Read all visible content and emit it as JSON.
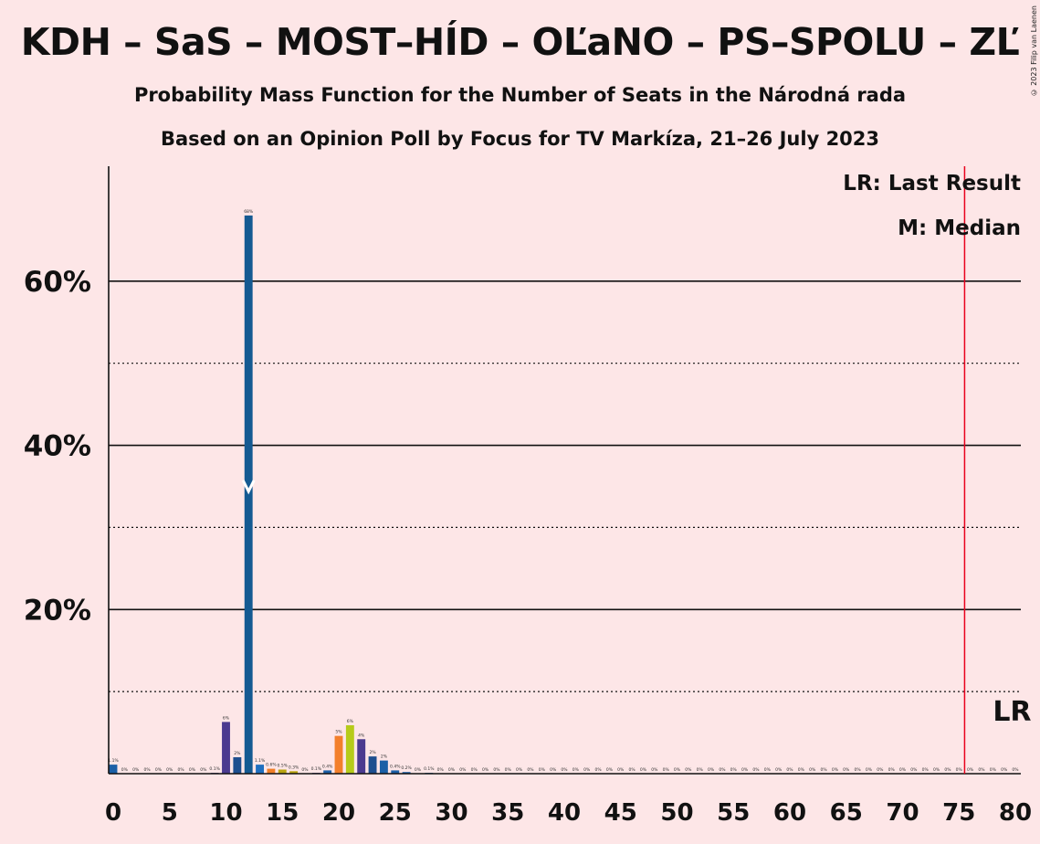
{
  "title": "KDH – SaS – MOST–HÍD – OĽaNO – PS–SPOLU – ZĽ",
  "subtitle1": "Probability Mass Function for the Number of Seats in the Národná rada",
  "subtitle2": "Based on an Opinion Poll by Focus for TV Markíza, 21–26 July 2023",
  "copyright": "© 2023 Filip van Laenen",
  "chart_data": {
    "type": "bar",
    "xlim": [
      0,
      80
    ],
    "ylim": [
      0,
      74
    ],
    "x_ticks": [
      0,
      5,
      10,
      15,
      20,
      25,
      30,
      35,
      40,
      45,
      50,
      55,
      60,
      65,
      70,
      75,
      80
    ],
    "y_ticks_labeled": [
      {
        "value": 20,
        "label": "20%"
      },
      {
        "value": 40,
        "label": "40%"
      },
      {
        "value": 60,
        "label": "60%"
      }
    ],
    "y_grid_solid": [
      20,
      40,
      60
    ],
    "y_grid_dotted": [
      10,
      30,
      50
    ],
    "last_result": {
      "seats": 76,
      "label": "LR",
      "legend": "LR: Last Result",
      "color": "#e8001c"
    },
    "median": {
      "seats": 12,
      "legend": "M: Median"
    },
    "bars": [
      {
        "seats": 0,
        "value": 1.1,
        "label": "1.1%",
        "color": "#1b5fa6"
      },
      {
        "seats": 1,
        "value": 0,
        "label": "0%",
        "color": "#1b5fa6"
      },
      {
        "seats": 2,
        "value": 0,
        "label": "0%",
        "color": "#1b5fa6"
      },
      {
        "seats": 3,
        "value": 0,
        "label": "0%",
        "color": "#1b5fa6"
      },
      {
        "seats": 4,
        "value": 0,
        "label": "0%",
        "color": "#1b5fa6"
      },
      {
        "seats": 5,
        "value": 0,
        "label": "0%",
        "color": "#1b5fa6"
      },
      {
        "seats": 6,
        "value": 0,
        "label": "0%",
        "color": "#1b5fa6"
      },
      {
        "seats": 7,
        "value": 0,
        "label": "0%",
        "color": "#1b5fa6"
      },
      {
        "seats": 8,
        "value": 0,
        "label": "0%",
        "color": "#1b5fa6"
      },
      {
        "seats": 9,
        "value": 0.1,
        "label": "0.1%",
        "color": "#4b3a8f"
      },
      {
        "seats": 10,
        "value": 6.3,
        "label": "6%",
        "color": "#4b3a8f"
      },
      {
        "seats": 11,
        "value": 2,
        "label": "2%",
        "color": "#1d4f8f"
      },
      {
        "seats": 12,
        "value": 68,
        "label": "68%",
        "color": "#145a92"
      },
      {
        "seats": 13,
        "value": 1.1,
        "label": "1.1%",
        "color": "#1e6fc0"
      },
      {
        "seats": 14,
        "value": 0.6,
        "label": "0.6%",
        "color": "#f07e28"
      },
      {
        "seats": 15,
        "value": 0.5,
        "label": "0.5%",
        "color": "#b9a410"
      },
      {
        "seats": 16,
        "value": 0.3,
        "label": "0.3%",
        "color": "#b9a410"
      },
      {
        "seats": 17,
        "value": 0,
        "label": "0%",
        "color": "#b9a410"
      },
      {
        "seats": 18,
        "value": 0.1,
        "label": "0.1%",
        "color": "#4b3a8f"
      },
      {
        "seats": 19,
        "value": 0.4,
        "label": "0.4%",
        "color": "#1b5fa6"
      },
      {
        "seats": 20,
        "value": 4.6,
        "label": "5%",
        "color": "#f37f2b"
      },
      {
        "seats": 21,
        "value": 5.9,
        "label": "6%",
        "color": "#b6cb1a"
      },
      {
        "seats": 22,
        "value": 4.2,
        "label": "4%",
        "color": "#4b3a8f"
      },
      {
        "seats": 23,
        "value": 2.1,
        "label": "2%",
        "color": "#1d4f8f"
      },
      {
        "seats": 24,
        "value": 1.6,
        "label": "2%",
        "color": "#1b5fa6"
      },
      {
        "seats": 25,
        "value": 0.4,
        "label": "0.4%",
        "color": "#1b5fa6"
      },
      {
        "seats": 26,
        "value": 0.2,
        "label": "0.2%",
        "color": "#1b5fa6"
      },
      {
        "seats": 27,
        "value": 0,
        "label": "0%",
        "color": "#1b5fa6"
      },
      {
        "seats": 28,
        "value": 0.1,
        "label": "0.1%",
        "color": "#1b5fa6"
      },
      {
        "seats": 29,
        "value": 0,
        "label": "0%",
        "color": "#1b5fa6"
      },
      {
        "seats": 30,
        "value": 0,
        "label": "0%",
        "color": "#1b5fa6"
      },
      {
        "seats": 31,
        "value": 0,
        "label": "0%",
        "color": "#1b5fa6"
      },
      {
        "seats": 32,
        "value": 0,
        "label": "0%",
        "color": "#1b5fa6"
      },
      {
        "seats": 33,
        "value": 0,
        "label": "0%",
        "color": "#1b5fa6"
      },
      {
        "seats": 34,
        "value": 0,
        "label": "0%",
        "color": "#1b5fa6"
      },
      {
        "seats": 35,
        "value": 0,
        "label": "0%",
        "color": "#1b5fa6"
      },
      {
        "seats": 36,
        "value": 0,
        "label": "0%",
        "color": "#1b5fa6"
      },
      {
        "seats": 37,
        "value": 0,
        "label": "0%",
        "color": "#1b5fa6"
      },
      {
        "seats": 38,
        "value": 0,
        "label": "0%",
        "color": "#1b5fa6"
      },
      {
        "seats": 39,
        "value": 0,
        "label": "0%",
        "color": "#1b5fa6"
      },
      {
        "seats": 40,
        "value": 0,
        "label": "0%",
        "color": "#1b5fa6"
      },
      {
        "seats": 41,
        "value": 0,
        "label": "0%",
        "color": "#1b5fa6"
      },
      {
        "seats": 42,
        "value": 0,
        "label": "0%",
        "color": "#1b5fa6"
      },
      {
        "seats": 43,
        "value": 0,
        "label": "0%",
        "color": "#1b5fa6"
      },
      {
        "seats": 44,
        "value": 0,
        "label": "0%",
        "color": "#1b5fa6"
      },
      {
        "seats": 45,
        "value": 0,
        "label": "0%",
        "color": "#1b5fa6"
      },
      {
        "seats": 46,
        "value": 0,
        "label": "0%",
        "color": "#1b5fa6"
      },
      {
        "seats": 47,
        "value": 0,
        "label": "0%",
        "color": "#1b5fa6"
      },
      {
        "seats": 48,
        "value": 0,
        "label": "0%",
        "color": "#1b5fa6"
      },
      {
        "seats": 49,
        "value": 0,
        "label": "0%",
        "color": "#1b5fa6"
      },
      {
        "seats": 50,
        "value": 0,
        "label": "0%",
        "color": "#1b5fa6"
      },
      {
        "seats": 51,
        "value": 0,
        "label": "0%",
        "color": "#1b5fa6"
      },
      {
        "seats": 52,
        "value": 0,
        "label": "0%",
        "color": "#1b5fa6"
      },
      {
        "seats": 53,
        "value": 0,
        "label": "0%",
        "color": "#1b5fa6"
      },
      {
        "seats": 54,
        "value": 0,
        "label": "0%",
        "color": "#1b5fa6"
      },
      {
        "seats": 55,
        "value": 0,
        "label": "0%",
        "color": "#1b5fa6"
      },
      {
        "seats": 56,
        "value": 0,
        "label": "0%",
        "color": "#1b5fa6"
      },
      {
        "seats": 57,
        "value": 0,
        "label": "0%",
        "color": "#1b5fa6"
      },
      {
        "seats": 58,
        "value": 0,
        "label": "0%",
        "color": "#1b5fa6"
      },
      {
        "seats": 59,
        "value": 0,
        "label": "0%",
        "color": "#1b5fa6"
      },
      {
        "seats": 60,
        "value": 0,
        "label": "0%",
        "color": "#1b5fa6"
      },
      {
        "seats": 61,
        "value": 0,
        "label": "0%",
        "color": "#1b5fa6"
      },
      {
        "seats": 62,
        "value": 0,
        "label": "0%",
        "color": "#1b5fa6"
      },
      {
        "seats": 63,
        "value": 0,
        "label": "0%",
        "color": "#1b5fa6"
      },
      {
        "seats": 64,
        "value": 0,
        "label": "0%",
        "color": "#1b5fa6"
      },
      {
        "seats": 65,
        "value": 0,
        "label": "0%",
        "color": "#1b5fa6"
      },
      {
        "seats": 66,
        "value": 0,
        "label": "0%",
        "color": "#1b5fa6"
      },
      {
        "seats": 67,
        "value": 0,
        "label": "0%",
        "color": "#1b5fa6"
      },
      {
        "seats": 68,
        "value": 0,
        "label": "0%",
        "color": "#1b5fa6"
      },
      {
        "seats": 69,
        "value": 0,
        "label": "0%",
        "color": "#1b5fa6"
      },
      {
        "seats": 70,
        "value": 0,
        "label": "0%",
        "color": "#1b5fa6"
      },
      {
        "seats": 71,
        "value": 0,
        "label": "0%",
        "color": "#1b5fa6"
      },
      {
        "seats": 72,
        "value": 0,
        "label": "0%",
        "color": "#1b5fa6"
      },
      {
        "seats": 73,
        "value": 0,
        "label": "0%",
        "color": "#1b5fa6"
      },
      {
        "seats": 74,
        "value": 0,
        "label": "0%",
        "color": "#1b5fa6"
      },
      {
        "seats": 75,
        "value": 0,
        "label": "0%",
        "color": "#1b5fa6"
      },
      {
        "seats": 76,
        "value": 0,
        "label": "0%",
        "color": "#1b5fa6"
      },
      {
        "seats": 77,
        "value": 0,
        "label": "0%",
        "color": "#1b5fa6"
      },
      {
        "seats": 78,
        "value": 0,
        "label": "0%",
        "color": "#1b5fa6"
      },
      {
        "seats": 79,
        "value": 0,
        "label": "0%",
        "color": "#1b5fa6"
      },
      {
        "seats": 80,
        "value": 0,
        "label": "0%",
        "color": "#1b5fa6"
      }
    ]
  }
}
